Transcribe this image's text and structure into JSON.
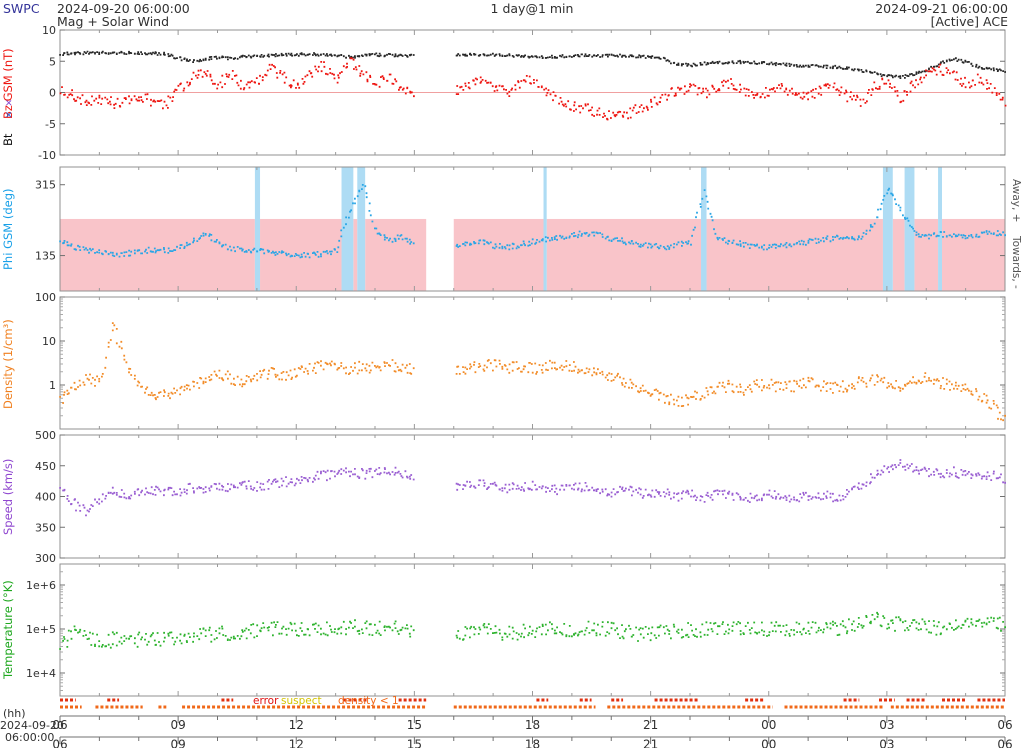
{
  "header": {
    "brand": "SWPC",
    "start_datetime": "2024-09-20 06:00:00",
    "cadence": "1 day@1 min",
    "end_datetime": "2024-09-21 06:00:00",
    "subtitle": "Mag + Solar Wind",
    "status": "[Active] ACE"
  },
  "labels": {
    "bz": "Bz GSM (nT)",
    "bx_symbol": "✕",
    "by_symbol": "✕",
    "bt": "Bt",
    "phi": "Phi GSM (deg)",
    "density": "Density (1/cm³)",
    "speed": "Speed (km/s)",
    "temperature": "Temperature (°K)",
    "hours": "(hh)",
    "bottom_date": "2024-09-20",
    "bottom_time": "06:00:00",
    "away": "Away, +",
    "towards": "Towards, -"
  },
  "flags": {
    "legend": [
      {
        "label": "error",
        "color": "#e01010"
      },
      {
        "label": "suspect",
        "color": "#d4c400"
      },
      {
        "label": "density < 1",
        "color": "#f06818"
      }
    ],
    "row1_segments": [
      [
        0,
        0.4
      ],
      [
        1.2,
        1.5
      ],
      [
        4.1,
        4.4
      ],
      [
        7.2,
        7.8
      ],
      [
        8.6,
        9.3
      ],
      [
        12.1,
        12.4
      ],
      [
        13.2,
        13.5
      ],
      [
        14.0,
        14.3
      ],
      [
        15.1,
        16.2
      ],
      [
        17.4,
        17.9
      ],
      [
        19.9,
        20.3
      ],
      [
        20.8,
        21.2
      ],
      [
        21.5,
        22.0
      ],
      [
        22.4,
        23.0
      ],
      [
        23.3,
        24
      ]
    ],
    "row2_segments": [
      [
        0,
        0.55
      ],
      [
        0.9,
        2.1
      ],
      [
        2.5,
        2.7
      ],
      [
        3.1,
        9.3
      ],
      [
        10.0,
        13.6
      ],
      [
        13.9,
        18.1
      ],
      [
        18.4,
        20.9
      ],
      [
        21.1,
        24
      ]
    ]
  },
  "chart_data": {
    "type": "scatter",
    "title": "Mag + Solar Wind",
    "source": "[Active] ACE",
    "x": {
      "hours": 24,
      "start_label": "2024-09-20 06:00:00",
      "end_label": "2024-09-21 06:00:00",
      "tick_hours": [
        0,
        3,
        6,
        9,
        12,
        15,
        18,
        21,
        24
      ],
      "tick_labels": [
        "06",
        "09",
        "12",
        "15",
        "18",
        "21",
        "00",
        "03",
        "06"
      ],
      "gap_hours": [
        9.3,
        10.0
      ],
      "sample_step_hours": 0.3333
    },
    "panels": [
      {
        "id": "mag",
        "ylabel": "Bt / Bz GSM (nT)",
        "scale": "linear",
        "ylim": [
          -10,
          10
        ],
        "ytick_values": [
          10,
          5,
          0,
          -5,
          -10
        ],
        "ytick_labels": [
          "10",
          "5",
          "0",
          "-5",
          "-10"
        ],
        "zero_line": true,
        "series": [
          {
            "name": "Bt",
            "color": "#282828",
            "jitter": 0.22,
            "values": [
              6.3,
              6.4,
              6.5,
              6.5,
              6.4,
              6.5,
              6.5,
              6.4,
              6.3,
              5.6,
              5.2,
              5.5,
              5.8,
              5.5,
              5.9,
              6.0,
              6.1,
              6.2,
              6.2,
              6.3,
              6.2,
              6.1,
              5.8,
              6.0,
              6.2,
              6.1,
              6.0,
              6.0,
              null,
              null,
              6.1,
              6.2,
              6.1,
              6.2,
              6.1,
              6.0,
              5.9,
              5.8,
              5.9,
              6.0,
              6.1,
              6.0,
              6.1,
              6.0,
              5.9,
              5.8,
              5.5,
              4.6,
              4.5,
              4.8,
              4.9,
              5.0,
              5.0,
              4.9,
              4.8,
              4.6,
              4.5,
              4.4,
              4.3,
              4.2,
              4.0,
              3.6,
              3.2,
              2.8,
              2.6,
              3.0,
              3.8,
              4.8,
              5.5,
              5.0,
              4.2,
              3.8,
              3.5
            ]
          },
          {
            "name": "Bz GSM",
            "color": "#ee1510",
            "jitter": 0.85,
            "values": [
              0.5,
              -0.5,
              -1.2,
              -0.8,
              -1.5,
              -1.0,
              -0.5,
              -1.2,
              -1.8,
              0.5,
              2.5,
              3.5,
              1.5,
              3.0,
              1.0,
              2.0,
              4.0,
              2.5,
              1.0,
              3.0,
              4.5,
              2.0,
              5.0,
              3.0,
              1.5,
              2.5,
              0.5,
              0.0,
              null,
              null,
              0.5,
              1.0,
              2.0,
              1.0,
              0.0,
              1.5,
              2.5,
              0.5,
              -1.0,
              -2.0,
              -2.5,
              -3.0,
              -3.8,
              -3.5,
              -2.5,
              -1.5,
              -0.5,
              0.5,
              1.0,
              0.0,
              1.0,
              1.5,
              0.5,
              -0.5,
              0.5,
              1.0,
              0.0,
              -0.5,
              0.5,
              1.0,
              -0.5,
              -1.5,
              1.0,
              2.0,
              -1.0,
              1.5,
              3.0,
              4.0,
              3.0,
              1.5,
              2.5,
              0.5,
              -1.5
            ]
          }
        ]
      },
      {
        "id": "phi",
        "ylabel": "Phi GSM (deg)",
        "scale": "linear",
        "ylim": [
          45,
          360
        ],
        "ytick_values": [
          315,
          135
        ],
        "ytick_labels": [
          "315",
          "135"
        ],
        "sectors": {
          "toward_fill": "#f9c4c9",
          "toward_top": 228,
          "toward_segments": [
            [
              0,
              4.95
            ],
            [
              5.08,
              7.15
            ],
            [
              7.45,
              7.55
            ],
            [
              7.75,
              9.3
            ],
            [
              10,
              12.28
            ],
            [
              12.36,
              16.28
            ],
            [
              16.42,
              20.9
            ],
            [
              21.15,
              21.45
            ],
            [
              21.7,
              22.3
            ],
            [
              22.4,
              24
            ]
          ],
          "away_fill": "#aedcf4",
          "away_segments": [
            [
              4.95,
              5.08
            ],
            [
              7.15,
              7.45
            ],
            [
              7.55,
              7.75
            ],
            [
              12.28,
              12.36
            ],
            [
              16.28,
              16.42
            ],
            [
              20.9,
              21.15
            ],
            [
              21.45,
              21.7
            ],
            [
              22.3,
              22.4
            ]
          ]
        },
        "series": [
          {
            "name": "Phi GSM",
            "color": "#2aa6e6",
            "jitter": 7,
            "values": [
              175,
              160,
              150,
              145,
              140,
              142,
              148,
              152,
              150,
              158,
              170,
              195,
              168,
              155,
              150,
              148,
              145,
              142,
              140,
              138,
              142,
              150,
              250,
              320,
              200,
              175,
              185,
              165,
              null,
              null,
              160,
              168,
              172,
              162,
              158,
              165,
              172,
              178,
              182,
              188,
              195,
              190,
              180,
              172,
              165,
              162,
              158,
              165,
              170,
              300,
              180,
              172,
              165,
              160,
              158,
              162,
              168,
              172,
              178,
              182,
              178,
              185,
              220,
              310,
              250,
              195,
              185,
              192,
              188,
              182,
              190,
              195,
              192
            ]
          }
        ]
      },
      {
        "id": "density",
        "ylabel": "Density (1/cm³)",
        "scale": "log",
        "ylim": [
          0.1,
          100
        ],
        "ytick_values": [
          100,
          10,
          1
        ],
        "ytick_labels": [
          "100",
          "10",
          "1"
        ],
        "minor_log": true,
        "series": [
          {
            "name": "Density",
            "color": "#f28c28",
            "jitter": 0.13,
            "values": [
              0.5,
              1.0,
              1.5,
              1.2,
              25,
              3.0,
              1.0,
              0.7,
              0.6,
              0.8,
              1.0,
              1.5,
              1.8,
              1.5,
              1.2,
              1.8,
              2.0,
              1.6,
              2.0,
              2.5,
              2.8,
              3.0,
              2.2,
              2.8,
              2.5,
              3.0,
              2.6,
              2.4,
              null,
              null,
              2.0,
              2.4,
              2.8,
              3.0,
              2.6,
              2.8,
              2.4,
              2.8,
              3.2,
              2.8,
              2.4,
              2.0,
              1.6,
              1.2,
              0.9,
              0.7,
              0.5,
              0.45,
              0.5,
              0.7,
              0.9,
              1.0,
              0.8,
              1.0,
              1.1,
              0.9,
              1.0,
              1.2,
              1.0,
              0.9,
              1.0,
              1.2,
              1.4,
              1.2,
              1.0,
              1.3,
              1.5,
              1.2,
              1.0,
              0.8,
              0.6,
              0.35,
              0.15
            ]
          }
        ]
      },
      {
        "id": "speed",
        "ylabel": "Speed (km/s)",
        "scale": "linear",
        "ylim": [
          300,
          500
        ],
        "ytick_values": [
          500,
          450,
          400,
          350,
          300
        ],
        "ytick_labels": [
          "500",
          "450",
          "400",
          "350",
          "300"
        ],
        "series": [
          {
            "name": "Speed",
            "color": "#9a5fd2",
            "jitter": 8,
            "values": [
              415,
              390,
              375,
              400,
              410,
              405,
              408,
              412,
              408,
              410,
              415,
              412,
              418,
              415,
              420,
              418,
              422,
              425,
              428,
              432,
              435,
              438,
              442,
              438,
              440,
              445,
              440,
              435,
              null,
              null,
              420,
              418,
              422,
              420,
              415,
              418,
              420,
              415,
              412,
              415,
              418,
              412,
              408,
              412,
              408,
              405,
              408,
              402,
              405,
              400,
              405,
              402,
              398,
              402,
              405,
              400,
              398,
              402,
              405,
              400,
              405,
              418,
              435,
              448,
              455,
              445,
              440,
              438,
              442,
              435,
              432,
              435,
              430
            ]
          }
        ]
      },
      {
        "id": "temperature",
        "ylabel": "Temperature (°K)",
        "scale": "log",
        "ylim": [
          3000,
          3000000
        ],
        "ytick_values": [
          1000000,
          100000,
          10000
        ],
        "ytick_labels": [
          "1e+6",
          "1e+5",
          "1e+4"
        ],
        "minor_log": true,
        "series": [
          {
            "name": "Temperature",
            "color": "#2eb32e",
            "jitter": 0.17,
            "values": [
              40000,
              90000,
              70000,
              50000,
              60000,
              55000,
              60000,
              65000,
              60000,
              65000,
              70000,
              75000,
              80000,
              85000,
              90000,
              95000,
              100000,
              105000,
              100000,
              110000,
              105000,
              110000,
              115000,
              110000,
              105000,
              110000,
              100000,
              95000,
              null,
              null,
              85000,
              90000,
              95000,
              90000,
              85000,
              90000,
              95000,
              100000,
              105000,
              100000,
              110000,
              105000,
              100000,
              90000,
              80000,
              85000,
              90000,
              95000,
              100000,
              105000,
              100000,
              110000,
              105000,
              100000,
              105000,
              110000,
              100000,
              105000,
              110000,
              105000,
              120000,
              150000,
              180000,
              150000,
              130000,
              140000,
              120000,
              110000,
              120000,
              130000,
              140000,
              135000,
              130000
            ]
          }
        ]
      }
    ]
  }
}
